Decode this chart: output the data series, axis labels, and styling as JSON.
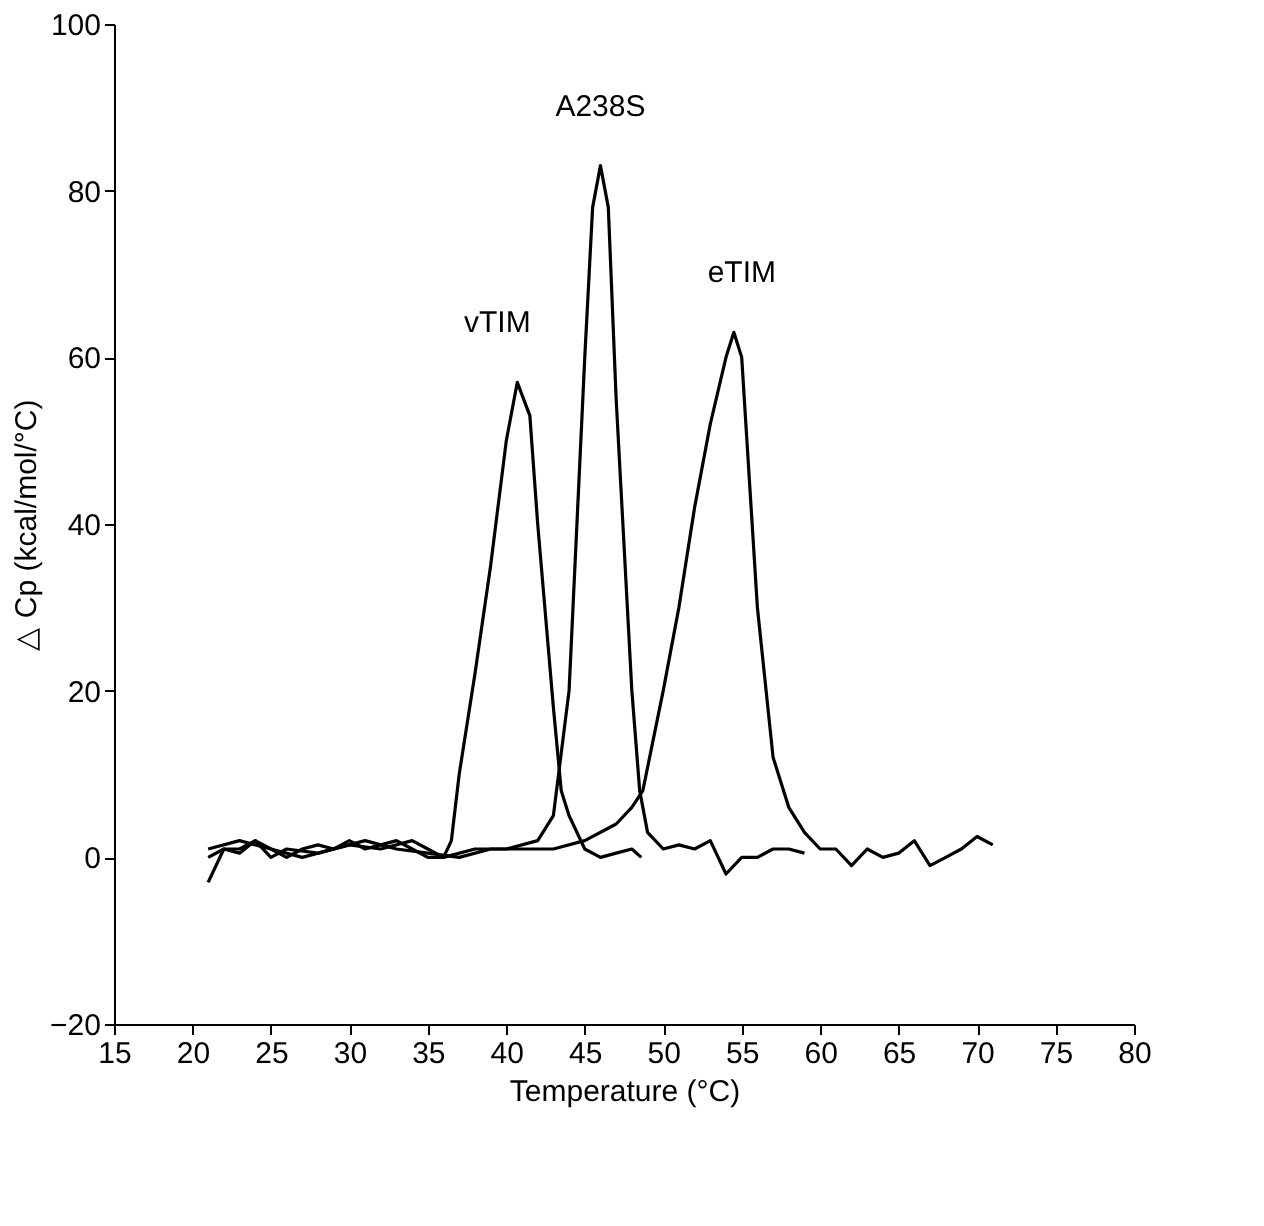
{
  "chart_data": {
    "type": "line",
    "xlabel": "Temperature (°C)",
    "ylabel": "△ Cp (kcal/mol/°C)",
    "xlim": [
      15,
      80
    ],
    "xticks": [
      15,
      20,
      25,
      30,
      35,
      40,
      45,
      50,
      55,
      60,
      65,
      70,
      75,
      80
    ],
    "ylim": [
      -20,
      100
    ],
    "yticks": [
      -20,
      0,
      20,
      40,
      60,
      80,
      100
    ],
    "grid": false,
    "marker": "none",
    "line_style": "solid",
    "series": [
      {
        "name": "vTIM",
        "color": "#000000",
        "x": [
          21,
          22,
          23,
          24,
          25,
          26,
          27,
          28,
          29,
          30,
          31,
          32,
          33,
          34,
          35,
          36,
          36.5,
          37,
          38,
          39,
          40,
          40.7,
          41.5,
          42,
          43,
          43.5,
          44,
          45,
          46,
          47,
          48,
          48.6
        ],
        "values": [
          0,
          1,
          0.5,
          2,
          1,
          0,
          1,
          1.5,
          1,
          2,
          1,
          1.5,
          2,
          1,
          0,
          0,
          2,
          10,
          22,
          35,
          50,
          57,
          53,
          40,
          18,
          8,
          5,
          1,
          0,
          0.5,
          1,
          0
        ]
      },
      {
        "name": "A238S",
        "color": "#000000",
        "x": [
          21,
          22,
          23,
          24,
          25,
          26,
          28,
          30,
          32,
          34,
          35,
          36,
          38,
          40,
          42,
          43,
          44,
          45,
          45.5,
          46,
          46.5,
          47,
          48,
          48.5,
          49,
          50,
          51,
          52,
          53,
          54,
          55,
          56,
          57,
          58,
          59
        ],
        "values": [
          -3,
          1,
          1,
          2,
          0,
          1,
          0.5,
          1.5,
          1,
          2,
          1,
          0,
          1,
          1,
          2,
          5,
          20,
          60,
          78,
          83,
          78,
          55,
          20,
          8,
          3,
          1,
          1.5,
          1,
          2,
          -2,
          0,
          0,
          1,
          1,
          0.5
        ]
      },
      {
        "name": "eTIM",
        "color": "#000000",
        "x": [
          21,
          23,
          25,
          27,
          29,
          31,
          33,
          35,
          37,
          39,
          41,
          43,
          45,
          47,
          48,
          48.7,
          50,
          51,
          52,
          53,
          54,
          54.5,
          55,
          56,
          57,
          58,
          59,
          60,
          61,
          62,
          63,
          64,
          65,
          66,
          67,
          68,
          69,
          70,
          71
        ],
        "values": [
          1,
          2,
          1,
          0,
          1,
          2,
          1,
          0.5,
          0,
          1,
          1,
          1,
          2,
          4,
          6,
          8,
          20,
          30,
          42,
          52,
          60,
          63,
          60,
          30,
          12,
          6,
          3,
          1,
          1,
          -1,
          1,
          0,
          0.5,
          2,
          -1,
          0,
          1,
          2.5,
          1.5
        ]
      }
    ]
  }
}
